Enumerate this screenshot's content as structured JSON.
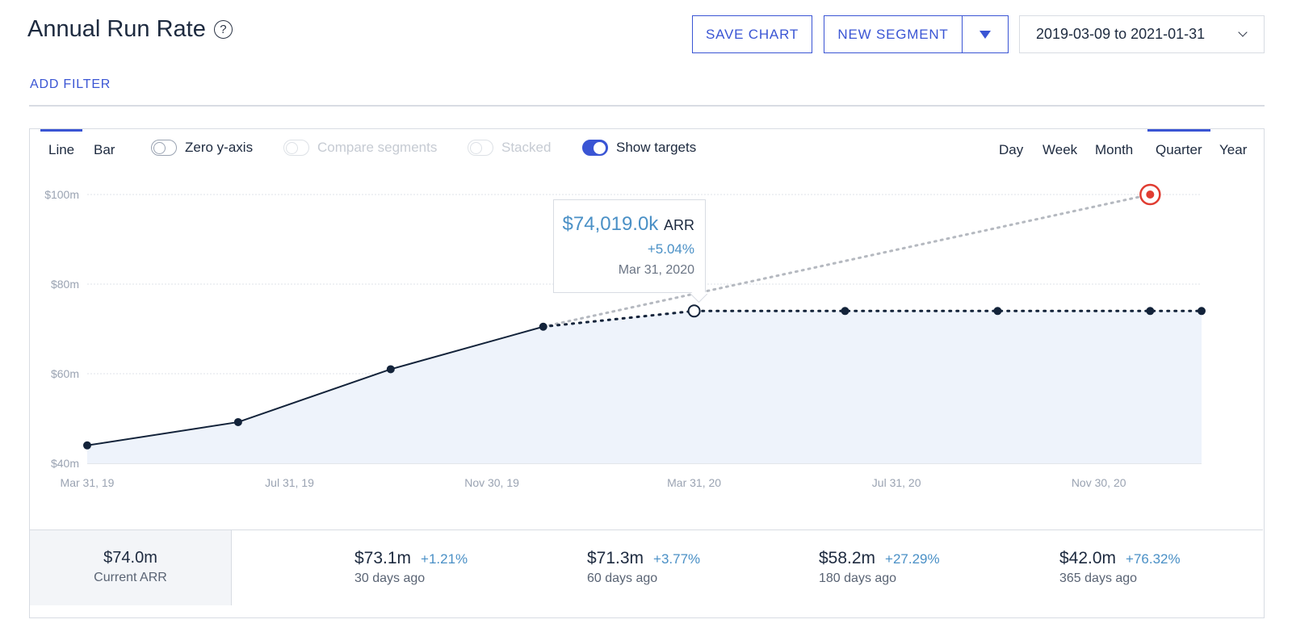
{
  "header": {
    "title": "Annual Run Rate",
    "help_icon": "?",
    "save_chart_label": "SAVE CHART",
    "new_segment_label": "NEW SEGMENT",
    "date_range": "2019-03-09 to 2021-01-31"
  },
  "filter": {
    "add_filter_label": "ADD FILTER"
  },
  "chart_controls": {
    "view_tabs": [
      {
        "label": "Line",
        "active": true
      },
      {
        "label": "Bar",
        "active": false
      }
    ],
    "toggles": [
      {
        "label": "Zero y-axis",
        "state": "off"
      },
      {
        "label": "Compare segments",
        "state": "disabled"
      },
      {
        "label": "Stacked",
        "state": "disabled"
      },
      {
        "label": "Show targets",
        "state": "on"
      }
    ],
    "intervals": [
      {
        "label": "Day",
        "active": false
      },
      {
        "label": "Week",
        "active": false
      },
      {
        "label": "Month",
        "active": false
      },
      {
        "label": "Quarter",
        "active": true
      },
      {
        "label": "Year",
        "active": false
      }
    ]
  },
  "colors": {
    "accent": "#3a55d4",
    "line": "#13233a",
    "area": "#eef3fb",
    "target": "#e03c31",
    "positive": "#4a90c6"
  },
  "chart_data": {
    "type": "line",
    "y_ticks": [
      "$40m",
      "$60m",
      "$80m",
      "$100m"
    ],
    "ylim": [
      40,
      100
    ],
    "x_tick_labels": [
      "Mar 31, 19",
      "Jul 31, 19",
      "Nov 30, 19",
      "Mar 31, 20",
      "Jul 31, 20",
      "Nov 30, 20"
    ],
    "x_tick_days": [
      0,
      122,
      244,
      366,
      488,
      610
    ],
    "xlim_days": [
      0,
      672
    ],
    "series": [
      {
        "values_days": [
          0,
          91,
          183,
          275,
          366,
          457,
          549,
          641,
          672
        ],
        "values": [
          44.0,
          49.2,
          61.0,
          70.5,
          74.0,
          74.0,
          74.0,
          74.0,
          74.0
        ],
        "solid_until_index": 3
      }
    ],
    "target": {
      "from_day": 275,
      "from_value": 70.5,
      "to_day": 641,
      "to_value": 100
    },
    "highlight_index": 4,
    "grid": true
  },
  "tooltip": {
    "value": "$74,019.0k",
    "unit": "ARR",
    "change": "+5.04%",
    "date": "Mar 31, 2020"
  },
  "summary": {
    "current": {
      "value": "$74.0m",
      "label": "Current ARR"
    },
    "stats": [
      {
        "value": "$73.1m",
        "change": "+1.21%",
        "label": "30 days ago"
      },
      {
        "value": "$71.3m",
        "change": "+3.77%",
        "label": "60 days ago"
      },
      {
        "value": "$58.2m",
        "change": "+27.29%",
        "label": "180 days ago"
      },
      {
        "value": "$42.0m",
        "change": "+76.32%",
        "label": "365 days ago"
      }
    ]
  }
}
